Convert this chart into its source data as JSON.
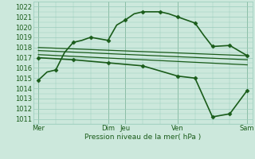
{
  "background_color": "#cce8dc",
  "grid_color": "#99ccbb",
  "line_color": "#1a5c1a",
  "marker_color": "#1a5c1a",
  "xlabel_text": "Pression niveau de la mer( hPa )",
  "ylim": [
    1010.5,
    1022.5
  ],
  "yticks": [
    1011,
    1012,
    1013,
    1014,
    1015,
    1016,
    1017,
    1018,
    1019,
    1020,
    1021,
    1022
  ],
  "xtick_labels": [
    "Mer",
    "Dim",
    "Jeu",
    "Ven",
    "Sam"
  ],
  "xtick_positions": [
    0,
    4,
    5,
    8,
    12
  ],
  "vline_positions": [
    0,
    4,
    5,
    8,
    12
  ],
  "series": [
    {
      "x": [
        0,
        0.5,
        1,
        1.5,
        2,
        2.5,
        3,
        3.5,
        4,
        4.5,
        5,
        5.5,
        6,
        6.5,
        7,
        7.5,
        8,
        8.5,
        9,
        9.5,
        10,
        10.5,
        11,
        11.5,
        12
      ],
      "y": [
        1014.8,
        1015.6,
        1015.8,
        1017.5,
        1018.5,
        1018.7,
        1019.0,
        1018.85,
        1018.7,
        1020.2,
        1020.7,
        1021.3,
        1021.5,
        1021.5,
        1021.5,
        1021.3,
        1021.0,
        1020.7,
        1020.4,
        1019.2,
        1018.1,
        1018.15,
        1018.2,
        1017.7,
        1017.2
      ],
      "marker": "D",
      "markersize": 2.5,
      "linewidth": 1.2,
      "with_marker_every": 2
    },
    {
      "x": [
        0,
        12
      ],
      "y": [
        1018.0,
        1017.2
      ],
      "marker": null,
      "markersize": 0,
      "linewidth": 0.9,
      "with_marker_every": null
    },
    {
      "x": [
        0,
        12
      ],
      "y": [
        1017.7,
        1016.8
      ],
      "marker": null,
      "markersize": 0,
      "linewidth": 0.9,
      "with_marker_every": null
    },
    {
      "x": [
        0,
        12
      ],
      "y": [
        1017.3,
        1016.3
      ],
      "marker": null,
      "markersize": 0,
      "linewidth": 0.9,
      "with_marker_every": null
    },
    {
      "x": [
        0,
        2,
        4,
        6,
        8,
        9,
        10,
        11,
        12
      ],
      "y": [
        1017.0,
        1016.8,
        1016.5,
        1016.2,
        1015.2,
        1015.0,
        1011.2,
        1011.5,
        1013.8
      ],
      "marker": "D",
      "markersize": 2.5,
      "linewidth": 1.2,
      "with_marker_every": 1
    }
  ]
}
